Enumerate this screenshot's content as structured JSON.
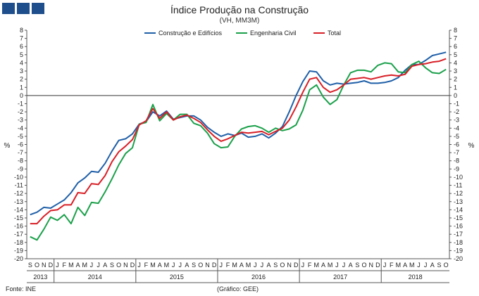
{
  "header": {
    "title": "Índice Produção na Construção",
    "subtitle": "(VH, MM3M)"
  },
  "footer": {
    "source": "Fonte: INE",
    "credit": "(Gráfico: GEE)"
  },
  "chart_data": {
    "type": "line",
    "title": "Índice Produção na Construção",
    "subtitle": "(VH, MM3M)",
    "ylabel": "%",
    "ylabel_right": "%",
    "ylim": [
      -20,
      8
    ],
    "yticks": [
      8,
      7,
      6,
      5,
      4,
      3,
      2,
      1,
      0,
      -1,
      -2,
      -3,
      -4,
      -5,
      -6,
      -7,
      -8,
      -9,
      -10,
      -11,
      -12,
      -13,
      -14,
      -15,
      -16,
      -17,
      -18,
      -19,
      -20
    ],
    "months": [
      "S",
      "O",
      "N",
      "D",
      "J",
      "F",
      "M",
      "A",
      "M",
      "J",
      "J",
      "A",
      "S",
      "O",
      "N",
      "D",
      "J",
      "F",
      "M",
      "A",
      "M",
      "J",
      "J",
      "A",
      "S",
      "O",
      "N",
      "D",
      "J",
      "F",
      "M",
      "A",
      "M",
      "J",
      "J",
      "A",
      "S",
      "O",
      "N",
      "D",
      "J",
      "F",
      "M",
      "A",
      "M",
      "J",
      "J",
      "A",
      "S",
      "O",
      "N",
      "D",
      "J",
      "F",
      "M",
      "A",
      "M",
      "J",
      "J",
      "A",
      "S",
      "O"
    ],
    "years": [
      {
        "label": "2013",
        "start": 0,
        "end": 3
      },
      {
        "label": "2014",
        "start": 4,
        "end": 15
      },
      {
        "label": "2015",
        "start": 16,
        "end": 27
      },
      {
        "label": "2016",
        "start": 28,
        "end": 39
      },
      {
        "label": "2017",
        "start": 40,
        "end": 51
      },
      {
        "label": "2018",
        "start": 52,
        "end": 61
      }
    ],
    "legend_position": "top-center",
    "series": [
      {
        "name": "Construção e Edifícios",
        "color": "#1f5fa8",
        "values": [
          -14.6,
          -14.3,
          -13.7,
          -13.8,
          -13.3,
          -12.8,
          -11.9,
          -10.7,
          -10.1,
          -9.3,
          -9.4,
          -8.3,
          -6.8,
          -5.5,
          -5.3,
          -4.7,
          -3.5,
          -3.2,
          -2.0,
          -2.5,
          -1.9,
          -2.9,
          -2.7,
          -2.5,
          -2.5,
          -3.0,
          -3.9,
          -4.5,
          -5.0,
          -4.7,
          -4.9,
          -4.6,
          -5.1,
          -5.0,
          -4.7,
          -5.2,
          -4.6,
          -3.8,
          -2.0,
          0.0,
          1.7,
          3.0,
          2.9,
          1.8,
          1.3,
          1.5,
          1.4,
          1.5,
          1.6,
          1.8,
          1.5,
          1.5,
          1.6,
          1.8,
          2.2,
          3.1,
          3.8,
          3.8,
          4.3,
          4.9,
          5.1,
          5.3
        ]
      },
      {
        "name": "Engenharia Civil",
        "color": "#1aa04a",
        "values": [
          -17.3,
          -17.7,
          -16.4,
          -14.9,
          -15.3,
          -14.6,
          -15.7,
          -13.7,
          -14.7,
          -13.1,
          -13.2,
          -11.8,
          -10.2,
          -8.5,
          -7.1,
          -6.4,
          -3.5,
          -3.3,
          -1.1,
          -3.1,
          -2.2,
          -3.0,
          -2.3,
          -2.3,
          -3.4,
          -3.7,
          -4.6,
          -5.9,
          -6.4,
          -6.3,
          -5.0,
          -4.1,
          -3.8,
          -3.7,
          -4.0,
          -4.5,
          -4.0,
          -4.3,
          -4.1,
          -3.6,
          -1.8,
          0.7,
          1.3,
          -0.2,
          -1.1,
          -0.5,
          1.3,
          2.8,
          3.1,
          3.1,
          2.9,
          3.7,
          4.0,
          3.9,
          2.9,
          2.8,
          3.8,
          4.2,
          3.4,
          2.8,
          2.7,
          3.2
        ]
      },
      {
        "name": "Total",
        "color": "#d81f26",
        "values": [
          -15.7,
          -15.7,
          -14.8,
          -14.1,
          -14.0,
          -13.4,
          -13.4,
          -11.9,
          -12.0,
          -10.8,
          -10.9,
          -9.8,
          -8.1,
          -6.9,
          -6.2,
          -5.4,
          -3.6,
          -3.1,
          -1.6,
          -2.8,
          -2.0,
          -3.0,
          -2.6,
          -2.4,
          -2.8,
          -3.3,
          -4.2,
          -5.0,
          -5.6,
          -5.3,
          -4.9,
          -4.5,
          -4.6,
          -4.5,
          -4.4,
          -4.8,
          -4.4,
          -4.0,
          -3.0,
          -1.4,
          0.4,
          2.0,
          2.2,
          1.0,
          0.4,
          0.7,
          1.3,
          2.0,
          2.1,
          2.2,
          2.0,
          2.2,
          2.4,
          2.5,
          2.4,
          2.6,
          3.6,
          3.8,
          3.9,
          4.1,
          4.2,
          4.5
        ]
      }
    ]
  }
}
